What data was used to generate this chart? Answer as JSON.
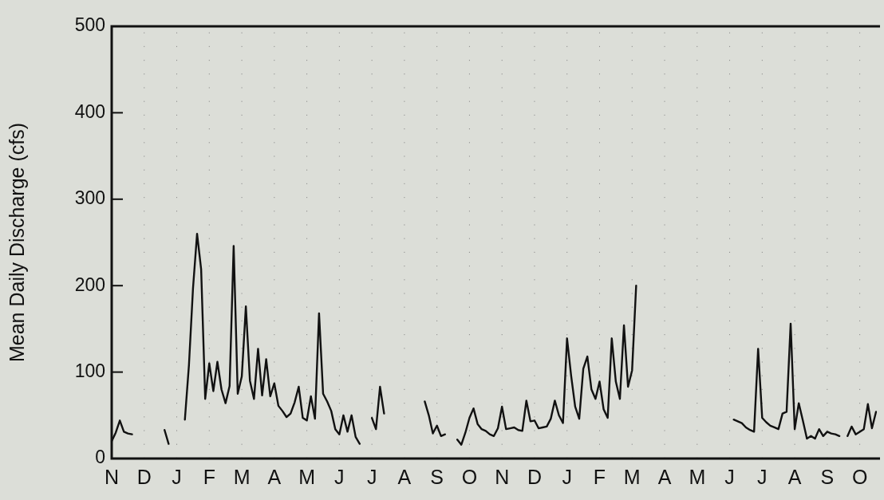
{
  "chart_data": {
    "type": "line",
    "ylabel": "Mean Daily Discharge (cfs)",
    "categories": [
      "N",
      null,
      null,
      null,
      null,
      null,
      null,
      null,
      "D",
      null,
      null,
      null,
      null,
      null,
      null,
      null,
      "J",
      null,
      null,
      null,
      null,
      null,
      null,
      null,
      "F",
      null,
      null,
      null,
      null,
      null,
      null,
      null,
      "M",
      null,
      null,
      null,
      null,
      null,
      null,
      null,
      "A",
      null,
      null,
      null,
      null,
      null,
      null,
      null,
      "M",
      null,
      null,
      null,
      null,
      null,
      null,
      null,
      "J",
      null,
      null,
      null,
      null,
      null,
      null,
      null,
      "J",
      null,
      null,
      null,
      null,
      null,
      null,
      null,
      "A",
      null,
      null,
      null,
      null,
      null,
      null,
      null,
      "S",
      null,
      null,
      null,
      null,
      null,
      null,
      null,
      "O",
      null,
      null,
      null,
      null,
      null,
      null,
      null,
      "N",
      null,
      null,
      null,
      null,
      null,
      null,
      null,
      "D",
      null,
      null,
      null,
      null,
      null,
      null,
      null,
      "J",
      null,
      null,
      null,
      null,
      null,
      null,
      null,
      "F",
      null,
      null,
      null,
      null,
      null,
      null,
      null,
      "M",
      null,
      null,
      null,
      null,
      null,
      null,
      null,
      "A",
      null,
      null,
      null,
      null,
      null,
      null,
      null,
      "M",
      null,
      null,
      null,
      null,
      null,
      null,
      null,
      "J",
      null,
      null,
      null,
      null,
      null,
      null,
      null,
      "J",
      null,
      null,
      null,
      null,
      null,
      null,
      null,
      "A",
      null,
      null,
      null,
      null,
      null,
      null,
      null,
      "S",
      null,
      null,
      null,
      null,
      null,
      null,
      null,
      "O",
      null,
      null,
      null,
      null
    ],
    "ylim": [
      0,
      500
    ],
    "yticks": [
      0,
      100,
      200,
      300,
      400,
      500
    ],
    "grid": "x",
    "marker": "none",
    "line_style": "solid",
    "series": [
      {
        "color": "#111111",
        "values": [
          20,
          30,
          44,
          31,
          29,
          28,
          null,
          null,
          null,
          null,
          null,
          null,
          null,
          33,
          17,
          null,
          null,
          null,
          45,
          108,
          197,
          260,
          219,
          69,
          110,
          78,
          112,
          80,
          64,
          84,
          246,
          75,
          95,
          176,
          90,
          69,
          127,
          73,
          115,
          72,
          87,
          61,
          55,
          48,
          52,
          65,
          83,
          47,
          44,
          72,
          46,
          168,
          75,
          66,
          55,
          34,
          28,
          50,
          31,
          50,
          25,
          17,
          null,
          null,
          47,
          34,
          83,
          52,
          null,
          null,
          null,
          null,
          null,
          null,
          null,
          null,
          null,
          66,
          50,
          29,
          38,
          26,
          28,
          null,
          null,
          22,
          16,
          30,
          47,
          58,
          40,
          34,
          32,
          28,
          26,
          35,
          60,
          34,
          35,
          36,
          33,
          32,
          67,
          43,
          44,
          35,
          36,
          37,
          46,
          67,
          50,
          41,
          139,
          96,
          60,
          46,
          104,
          118,
          80,
          69,
          89,
          57,
          47,
          139,
          89,
          69,
          154,
          83,
          102,
          200,
          null,
          null,
          null,
          null,
          null,
          null,
          null,
          null,
          null,
          null,
          null,
          null,
          null,
          null,
          null,
          null,
          null,
          null,
          null,
          null,
          null,
          null,
          null,
          45,
          43,
          41,
          36,
          33,
          31,
          127,
          47,
          42,
          38,
          36,
          34,
          52,
          54,
          156,
          34,
          64,
          44,
          23,
          26,
          23,
          34,
          26,
          31,
          29,
          28,
          26,
          null,
          26,
          37,
          28,
          31,
          34,
          63,
          35,
          54
        ]
      }
    ]
  }
}
